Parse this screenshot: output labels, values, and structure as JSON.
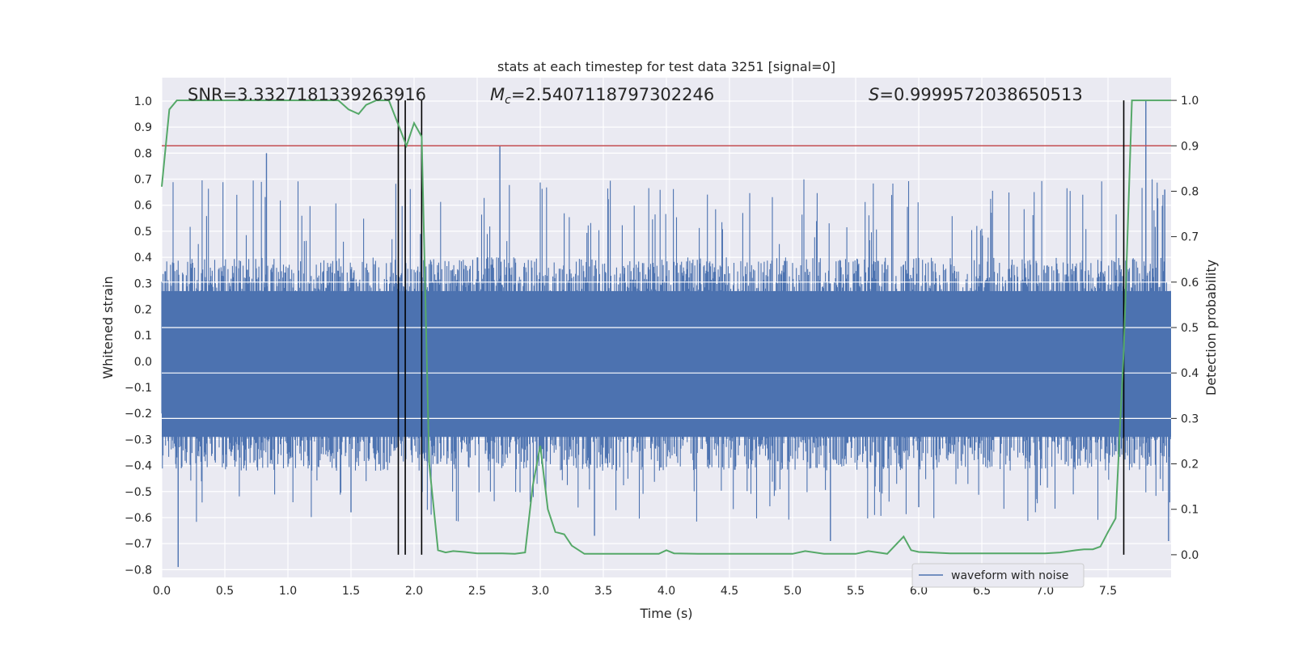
{
  "chart_data": {
    "type": "line",
    "title": "stats at each timestep for test data 3251 [signal=0]",
    "xlabel": "Time (s)",
    "ylabel": "Whitened strain",
    "ylabel_right": "Detection probability",
    "xlim": [
      0.0,
      8.0
    ],
    "ylim": [
      -0.83,
      1.09
    ],
    "ylim_right": [
      -0.05,
      1.05
    ],
    "xticks": [
      "0.0",
      "0.5",
      "1.0",
      "1.5",
      "2.0",
      "2.5",
      "3.0",
      "3.5",
      "4.0",
      "4.5",
      "5.0",
      "5.5",
      "6.0",
      "6.5",
      "7.0",
      "7.5"
    ],
    "xtick_values": [
      0.0,
      0.5,
      1.0,
      1.5,
      2.0,
      2.5,
      3.0,
      3.5,
      4.0,
      4.5,
      5.0,
      5.5,
      6.0,
      6.5,
      7.0,
      7.5
    ],
    "yticks": [
      "1.0",
      "0.9",
      "0.8",
      "0.7",
      "0.6",
      "0.5",
      "0.4",
      "0.3",
      "0.2",
      "0.1",
      "0.0",
      "−0.1",
      "−0.2",
      "−0.3",
      "−0.4",
      "−0.5",
      "−0.6",
      "−0.7",
      "−0.8"
    ],
    "ytick_values": [
      1.0,
      0.9,
      0.8,
      0.7,
      0.6,
      0.5,
      0.4,
      0.3,
      0.2,
      0.1,
      0.0,
      -0.1,
      -0.2,
      -0.3,
      -0.4,
      -0.5,
      -0.6,
      -0.7,
      -0.8
    ],
    "yticks_right": [
      "1.0",
      "0.9",
      "0.8",
      "0.7",
      "0.6",
      "0.5",
      "0.4",
      "0.3",
      "0.2",
      "0.1",
      "0.0"
    ],
    "ytick_right_values": [
      1.0,
      0.9,
      0.8,
      0.7,
      0.6,
      0.5,
      0.4,
      0.3,
      0.2,
      0.1,
      0.0
    ],
    "annotations": {
      "snr": "SNR=3.3327181339263916",
      "mc_symbol": "M",
      "mc_sub": "c",
      "mc_value": "=2.5407118797302246",
      "s_symbol": "S",
      "s_value": "=0.9999572038650513"
    },
    "threshold_right": 0.9,
    "vertical_lines_x": [
      1.875,
      1.93,
      2.06,
      7.625
    ],
    "legend": {
      "label": "waveform with noise",
      "position": "lower-right"
    },
    "series": [
      {
        "name": "waveform with noise",
        "axis": "left",
        "color": "#4c72b0",
        "style": "dense noise, approx. envelope +0.42/-0.45 with spikes",
        "spikes": [
          [
            0.13,
            -0.79
          ],
          [
            0.83,
            0.8
          ],
          [
            2.68,
            0.83
          ],
          [
            3.43,
            -0.67
          ],
          [
            7.8,
            1.0
          ],
          [
            7.95,
            0.66
          ],
          [
            7.98,
            -0.69
          ],
          [
            6.0,
            -0.56
          ],
          [
            5.3,
            -0.69
          ],
          [
            1.5,
            -0.58
          ]
        ]
      },
      {
        "name": "detection probability",
        "axis": "right",
        "color": "#55a868",
        "x": [
          0.0,
          0.06,
          0.12,
          0.25,
          0.5,
          0.75,
          1.0,
          1.25,
          1.4,
          1.48,
          1.56,
          1.62,
          1.7,
          1.8,
          1.87,
          1.94,
          2.0,
          2.06,
          2.12,
          2.19,
          2.25,
          2.31,
          2.4,
          2.5,
          2.6,
          2.7,
          2.8,
          2.88,
          2.94,
          3.0,
          3.06,
          3.12,
          3.19,
          3.25,
          3.35,
          3.5,
          3.75,
          3.94,
          4.0,
          4.06,
          4.25,
          4.5,
          4.75,
          5.0,
          5.1,
          5.25,
          5.5,
          5.6,
          5.75,
          5.88,
          5.94,
          6.0,
          6.25,
          6.5,
          7.0,
          7.12,
          7.25,
          7.31,
          7.38,
          7.44,
          7.5,
          7.56,
          7.625,
          7.69,
          7.75,
          8.0
        ],
        "values": [
          0.81,
          0.98,
          1.0,
          1.0,
          1.0,
          1.0,
          1.0,
          1.0,
          1.0,
          0.98,
          0.97,
          0.99,
          1.0,
          1.0,
          0.95,
          0.9,
          0.95,
          0.92,
          0.2,
          0.01,
          0.005,
          0.008,
          0.006,
          0.003,
          0.003,
          0.003,
          0.002,
          0.005,
          0.15,
          0.24,
          0.1,
          0.05,
          0.045,
          0.02,
          0.002,
          0.002,
          0.002,
          0.002,
          0.01,
          0.003,
          0.002,
          0.002,
          0.002,
          0.002,
          0.008,
          0.002,
          0.002,
          0.008,
          0.002,
          0.04,
          0.01,
          0.006,
          0.003,
          0.003,
          0.003,
          0.005,
          0.01,
          0.012,
          0.012,
          0.018,
          0.05,
          0.08,
          0.45,
          1.0,
          1.0,
          1.0
        ]
      }
    ]
  }
}
